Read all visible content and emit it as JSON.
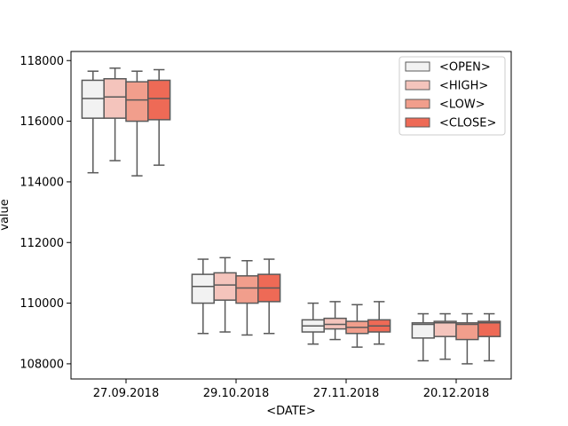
{
  "chart_data": {
    "type": "box",
    "xlabel": "<DATE>",
    "ylabel": "value",
    "ylim": [
      107500,
      118300
    ],
    "yticks": [
      108000,
      110000,
      112000,
      114000,
      116000,
      118000
    ],
    "ytick_labels": [
      "108000",
      "110000",
      "112000",
      "114000",
      "116000",
      "118000"
    ],
    "categories": [
      "27.09.2018",
      "29.10.2018",
      "27.11.2018",
      "20.12.2018"
    ],
    "legend_position": "top-right",
    "series": [
      {
        "name": "<OPEN>",
        "color": "#f2f2f2",
        "boxes": [
          {
            "whislo": 114300,
            "q1": 116100,
            "med": 116750,
            "q3": 117350,
            "whishi": 117650
          },
          {
            "whislo": 109000,
            "q1": 110000,
            "med": 110550,
            "q3": 110950,
            "whishi": 111450
          },
          {
            "whislo": 108650,
            "q1": 109050,
            "med": 109250,
            "q3": 109450,
            "whishi": 110000
          },
          {
            "whislo": 108100,
            "q1": 108850,
            "med": 109300,
            "q3": 109350,
            "whishi": 109650
          }
        ]
      },
      {
        "name": "<HIGH>",
        "color": "#f4c4bc",
        "boxes": [
          {
            "whislo": 114700,
            "q1": 116100,
            "med": 116800,
            "q3": 117400,
            "whishi": 117750
          },
          {
            "whislo": 109050,
            "q1": 110100,
            "med": 110600,
            "q3": 111000,
            "whishi": 111500
          },
          {
            "whislo": 108800,
            "q1": 109150,
            "med": 109300,
            "q3": 109500,
            "whishi": 110050
          },
          {
            "whislo": 108150,
            "q1": 108900,
            "med": 109350,
            "q3": 109400,
            "whishi": 109650
          }
        ]
      },
      {
        "name": "<LOW>",
        "color": "#f19e8c",
        "boxes": [
          {
            "whislo": 114200,
            "q1": 116000,
            "med": 116700,
            "q3": 117300,
            "whishi": 117650
          },
          {
            "whislo": 108950,
            "q1": 110000,
            "med": 110500,
            "q3": 110900,
            "whishi": 111400
          },
          {
            "whislo": 108550,
            "q1": 109000,
            "med": 109200,
            "q3": 109400,
            "whishi": 109950
          },
          {
            "whislo": 108000,
            "q1": 108800,
            "med": 109300,
            "q3": 109350,
            "whishi": 109650
          }
        ]
      },
      {
        "name": "<CLOSE>",
        "color": "#ee6a56",
        "boxes": [
          {
            "whislo": 114550,
            "q1": 116050,
            "med": 116750,
            "q3": 117350,
            "whishi": 117700
          },
          {
            "whislo": 109000,
            "q1": 110050,
            "med": 110500,
            "q3": 110950,
            "whishi": 111450
          },
          {
            "whislo": 108650,
            "q1": 109050,
            "med": 109250,
            "q3": 109450,
            "whishi": 110050
          },
          {
            "whislo": 108100,
            "q1": 108900,
            "med": 109350,
            "q3": 109400,
            "whishi": 109650
          }
        ]
      }
    ]
  },
  "colors": {
    "box_edge": "#595959",
    "axis": "#000000"
  }
}
